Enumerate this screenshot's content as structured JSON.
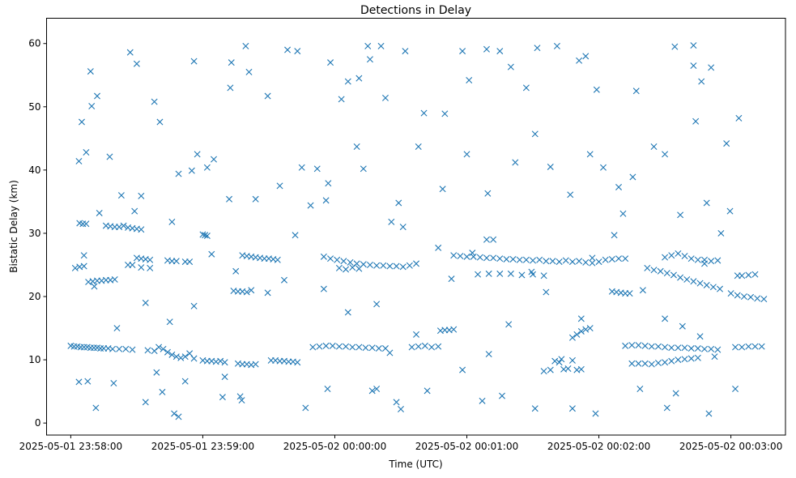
{
  "chart_data": {
    "type": "scatter",
    "title": "Detections in Delay",
    "xlabel": "Time (UTC)",
    "ylabel": "Bistatic Delay (km)",
    "x_units": "seconds since 2025-05-01 23:58:00 UTC",
    "xlim": [
      -11.0,
      324.8
    ],
    "ylim": [
      -1.9,
      64.0
    ],
    "grid": false,
    "marker": "x",
    "color": "#1f77b4",
    "x_ticks": [
      {
        "value": 0,
        "label": "2025-05-01 23:58:00"
      },
      {
        "value": 60,
        "label": "2025-05-01 23:59:00"
      },
      {
        "value": 120,
        "label": "2025-05-02 00:00:00"
      },
      {
        "value": 180,
        "label": "2025-05-02 00:01:00"
      },
      {
        "value": 240,
        "label": "2025-05-02 00:02:00"
      },
      {
        "value": 300,
        "label": "2025-05-02 00:03:00"
      }
    ],
    "y_ticks": [
      {
        "value": 0,
        "label": "0"
      },
      {
        "value": 10,
        "label": "10"
      },
      {
        "value": 20,
        "label": "20"
      },
      {
        "value": 30,
        "label": "30"
      },
      {
        "value": 40,
        "label": "40"
      },
      {
        "value": 50,
        "label": "50"
      },
      {
        "value": 60,
        "label": "60"
      }
    ],
    "points": [
      [
        0,
        12.2
      ],
      [
        1.5,
        12.1
      ],
      [
        3,
        12.1
      ],
      [
        4.5,
        12.0
      ],
      [
        6,
        12.0
      ],
      [
        7.5,
        12.0
      ],
      [
        9,
        11.9
      ],
      [
        10.5,
        11.9
      ],
      [
        12,
        11.9
      ],
      [
        13.5,
        11.8
      ],
      [
        15,
        11.8
      ],
      [
        17,
        11.8
      ],
      [
        19,
        11.7
      ],
      [
        22,
        11.7
      ],
      [
        25,
        11.7
      ],
      [
        28,
        11.6
      ],
      [
        4,
        31.6
      ],
      [
        5.5,
        31.5
      ],
      [
        7,
        31.5
      ],
      [
        16,
        31.2
      ],
      [
        18,
        31.1
      ],
      [
        20,
        31.0
      ],
      [
        22,
        31.0
      ],
      [
        24,
        31.2
      ],
      [
        26,
        30.9
      ],
      [
        28,
        30.8
      ],
      [
        30,
        30.7
      ],
      [
        32,
        30.6
      ],
      [
        8,
        22.3
      ],
      [
        10,
        22.4
      ],
      [
        12,
        22.5
      ],
      [
        14,
        22.5
      ],
      [
        16,
        22.6
      ],
      [
        18,
        22.6
      ],
      [
        20,
        22.7
      ],
      [
        2,
        24.5
      ],
      [
        4,
        24.7
      ],
      [
        6,
        24.8
      ],
      [
        28,
        25
      ],
      [
        32,
        24.6
      ],
      [
        36,
        24.5
      ],
      [
        30,
        26.1
      ],
      [
        32,
        26
      ],
      [
        34,
        25.9
      ],
      [
        36,
        25.8
      ],
      [
        44,
        25.7
      ],
      [
        46,
        25.6
      ],
      [
        48,
        25.6
      ],
      [
        52,
        25.5
      ],
      [
        54,
        25.5
      ],
      [
        35,
        11.5
      ],
      [
        38,
        11.4
      ],
      [
        40,
        12
      ],
      [
        42,
        11.7
      ],
      [
        44,
        11.2
      ],
      [
        46,
        10.8
      ],
      [
        48,
        10.5
      ],
      [
        50,
        10.3
      ],
      [
        52,
        10.5
      ],
      [
        54,
        11
      ],
      [
        56,
        10.2
      ],
      [
        60,
        9.9
      ],
      [
        62,
        9.8
      ],
      [
        64,
        9.8
      ],
      [
        66,
        9.7
      ],
      [
        68,
        9.8
      ],
      [
        70,
        9.6
      ],
      [
        60,
        29.8
      ],
      [
        61,
        29.7
      ],
      [
        62,
        29.6
      ],
      [
        74,
        20.9
      ],
      [
        76,
        20.8
      ],
      [
        78,
        20.8
      ],
      [
        80,
        20.7
      ],
      [
        82,
        21
      ],
      [
        78,
        26.5
      ],
      [
        80,
        26.4
      ],
      [
        82,
        26.3
      ],
      [
        84,
        26.2
      ],
      [
        86,
        26.1
      ],
      [
        88,
        26
      ],
      [
        90,
        26
      ],
      [
        92,
        25.9
      ],
      [
        94,
        25.8
      ],
      [
        76,
        9.4
      ],
      [
        78,
        9.3
      ],
      [
        80,
        9.3
      ],
      [
        82,
        9.2
      ],
      [
        84,
        9.3
      ],
      [
        91,
        9.9
      ],
      [
        93,
        9.9
      ],
      [
        95,
        9.8
      ],
      [
        97,
        9.8
      ],
      [
        99,
        9.7
      ],
      [
        101,
        9.7
      ],
      [
        103,
        9.6
      ],
      [
        110,
        12
      ],
      [
        113,
        12.1
      ],
      [
        116,
        12.2
      ],
      [
        119,
        12.2
      ],
      [
        122,
        12.1
      ],
      [
        125,
        12.1
      ],
      [
        128,
        12.0
      ],
      [
        131,
        12.0
      ],
      [
        134,
        11.9
      ],
      [
        137,
        11.9
      ],
      [
        140,
        11.8
      ],
      [
        143,
        11.8
      ],
      [
        115,
        26.3
      ],
      [
        118,
        26
      ],
      [
        121,
        25.8
      ],
      [
        124,
        25.6
      ],
      [
        127,
        25.4
      ],
      [
        130,
        25.2
      ],
      [
        133,
        25.1
      ],
      [
        136,
        25
      ],
      [
        139,
        24.9
      ],
      [
        142,
        24.9
      ],
      [
        145,
        24.8
      ],
      [
        148,
        24.8
      ],
      [
        151,
        24.7
      ],
      [
        154,
        24.9
      ],
      [
        157,
        25.2
      ],
      [
        122,
        24.5
      ],
      [
        125,
        24.3
      ],
      [
        128,
        24.6
      ],
      [
        131,
        24.4
      ],
      [
        155,
        12
      ],
      [
        158,
        12.1
      ],
      [
        161,
        12.2
      ],
      [
        164,
        12
      ],
      [
        167,
        12.1
      ],
      [
        168,
        14.6
      ],
      [
        170,
        14.7
      ],
      [
        172,
        14.7
      ],
      [
        174,
        14.8
      ],
      [
        174,
        26.5
      ],
      [
        177,
        26.4
      ],
      [
        180,
        26.3
      ],
      [
        183,
        26.3
      ],
      [
        186,
        26.2
      ],
      [
        189,
        26.1
      ],
      [
        192,
        26.1
      ],
      [
        195,
        26
      ],
      [
        198,
        25.9
      ],
      [
        201,
        25.9
      ],
      [
        204,
        25.8
      ],
      [
        207,
        25.8
      ],
      [
        210,
        25.7
      ],
      [
        213,
        25.8
      ],
      [
        216,
        25.6
      ],
      [
        219,
        25.6
      ],
      [
        222,
        25.5
      ],
      [
        185,
        23.5
      ],
      [
        190,
        23.6
      ],
      [
        195,
        23.6
      ],
      [
        200,
        23.6
      ],
      [
        205,
        23.4
      ],
      [
        210,
        23.5
      ],
      [
        215,
        23.3
      ],
      [
        189,
        29
      ],
      [
        192,
        29
      ],
      [
        215,
        8.2
      ],
      [
        218,
        8.4
      ],
      [
        220,
        9.8
      ],
      [
        222,
        9.6
      ],
      [
        224,
        8.5
      ],
      [
        226,
        8.6
      ],
      [
        228,
        9.9
      ],
      [
        230,
        8.4
      ],
      [
        232,
        8.5
      ],
      [
        228,
        13.5
      ],
      [
        230,
        14
      ],
      [
        232,
        14.5
      ],
      [
        234,
        14.8
      ],
      [
        236,
        15
      ],
      [
        225,
        25.7
      ],
      [
        228,
        25.5
      ],
      [
        231,
        25.6
      ],
      [
        234,
        25.4
      ],
      [
        237,
        25.3
      ],
      [
        240,
        25.5
      ],
      [
        243,
        25.8
      ],
      [
        246,
        25.9
      ],
      [
        249,
        26
      ],
      [
        252,
        26
      ],
      [
        246,
        20.8
      ],
      [
        248,
        20.7
      ],
      [
        250,
        20.6
      ],
      [
        252,
        20.5
      ],
      [
        254,
        20.5
      ],
      [
        252,
        12.2
      ],
      [
        255,
        12.3
      ],
      [
        258,
        12.3
      ],
      [
        261,
        12.2
      ],
      [
        264,
        12.1
      ],
      [
        267,
        12.1
      ],
      [
        270,
        12.0
      ],
      [
        273,
        11.9
      ],
      [
        276,
        11.9
      ],
      [
        279,
        11.9
      ],
      [
        282,
        11.8
      ],
      [
        285,
        11.8
      ],
      [
        288,
        11.7
      ],
      [
        291,
        11.7
      ],
      [
        294,
        11.6
      ],
      [
        255,
        9.4
      ],
      [
        258,
        9.4
      ],
      [
        261,
        9.4
      ],
      [
        264,
        9.3
      ],
      [
        267,
        9.5
      ],
      [
        270,
        9.6
      ],
      [
        273,
        9.8
      ],
      [
        276,
        10
      ],
      [
        279,
        10.1
      ],
      [
        282,
        10.2
      ],
      [
        285,
        10.3
      ],
      [
        262,
        24.5
      ],
      [
        265,
        24.2
      ],
      [
        268,
        24
      ],
      [
        271,
        23.7
      ],
      [
        274,
        23.4
      ],
      [
        277,
        23
      ],
      [
        280,
        22.7
      ],
      [
        283,
        22.4
      ],
      [
        286,
        22.1
      ],
      [
        289,
        21.8
      ],
      [
        292,
        21.5
      ],
      [
        295,
        21.2
      ],
      [
        270,
        26.2
      ],
      [
        273,
        26.5
      ],
      [
        276,
        26.8
      ],
      [
        279,
        26.4
      ],
      [
        282,
        26
      ],
      [
        285,
        25.8
      ],
      [
        288,
        25.8
      ],
      [
        291,
        25.6
      ],
      [
        294,
        25.7
      ],
      [
        302,
        12
      ],
      [
        305,
        12
      ],
      [
        308,
        12.1
      ],
      [
        311,
        12.1
      ],
      [
        314,
        12.1
      ],
      [
        300,
        20.5
      ],
      [
        303,
        20.2
      ],
      [
        306,
        20
      ],
      [
        309,
        19.9
      ],
      [
        312,
        19.7
      ],
      [
        315,
        19.6
      ],
      [
        305,
        23.3
      ],
      [
        308,
        23.4
      ],
      [
        311,
        23.5
      ],
      [
        3.7,
        41.4
      ],
      [
        5,
        47.6
      ],
      [
        7,
        42.8
      ],
      [
        9,
        55.6
      ],
      [
        12,
        51.7
      ],
      [
        9.5,
        50.1
      ],
      [
        17.7,
        42.1
      ],
      [
        27,
        58.6
      ],
      [
        30,
        56.8
      ],
      [
        32,
        35.9
      ],
      [
        40.5,
        47.6
      ],
      [
        38,
        50.8
      ],
      [
        49,
        39.4
      ],
      [
        56,
        57.2
      ],
      [
        57.5,
        42.5
      ],
      [
        65,
        41.7
      ],
      [
        73,
        57
      ],
      [
        72.5,
        53
      ],
      [
        79.5,
        59.6
      ],
      [
        81,
        55.5
      ],
      [
        89.5,
        51.7
      ],
      [
        98.5,
        59
      ],
      [
        103,
        58.8
      ],
      [
        112,
        40.2
      ],
      [
        116,
        35.2
      ],
      [
        118,
        57
      ],
      [
        123,
        51.2
      ],
      [
        126,
        54
      ],
      [
        131,
        54.5
      ],
      [
        135,
        59.6
      ],
      [
        141,
        59.6
      ],
      [
        136,
        57.5
      ],
      [
        143,
        51.4
      ],
      [
        152,
        58.8
      ],
      [
        160.5,
        49
      ],
      [
        170,
        48.9
      ],
      [
        178,
        58.8
      ],
      [
        181,
        54.2
      ],
      [
        189,
        59.1
      ],
      [
        195,
        58.8
      ],
      [
        200,
        56.3
      ],
      [
        207,
        53
      ],
      [
        212,
        59.3
      ],
      [
        221,
        59.6
      ],
      [
        231,
        57.3
      ],
      [
        234,
        58
      ],
      [
        239,
        52.7
      ],
      [
        257,
        52.5
      ],
      [
        274.5,
        59.5
      ],
      [
        283,
        59.7
      ],
      [
        283,
        56.5
      ],
      [
        286.6,
        54
      ],
      [
        291,
        56.2
      ],
      [
        284,
        47.7
      ],
      [
        298,
        44.2
      ],
      [
        303,
        23.3
      ],
      [
        303.6,
        48.2
      ],
      [
        3.7,
        6.5
      ],
      [
        11.4,
        2.4
      ],
      [
        7.7,
        6.6
      ],
      [
        19.5,
        6.3
      ],
      [
        34,
        3.3
      ],
      [
        41.6,
        4.9
      ],
      [
        47,
        1.5
      ],
      [
        49,
        1.0
      ],
      [
        52,
        6.6
      ],
      [
        69,
        4.1
      ],
      [
        77,
        4.2
      ],
      [
        77.7,
        3.6
      ],
      [
        106.7,
        2.4
      ],
      [
        116.7,
        5.4
      ],
      [
        137,
        5.1
      ],
      [
        139,
        5.4
      ],
      [
        148,
        3.3
      ],
      [
        150,
        2.2
      ],
      [
        162,
        5.1
      ],
      [
        178,
        8.4
      ],
      [
        187,
        3.5
      ],
      [
        196,
        4.3
      ],
      [
        211,
        2.3
      ],
      [
        228,
        2.3
      ],
      [
        238.5,
        1.5
      ],
      [
        258.7,
        5.4
      ],
      [
        271,
        2.4
      ],
      [
        275,
        4.7
      ],
      [
        290,
        1.5
      ],
      [
        302,
        5.4
      ],
      [
        6,
        26.5
      ],
      [
        10.7,
        21.6
      ],
      [
        13,
        33.2
      ],
      [
        21,
        15
      ],
      [
        26,
        25
      ],
      [
        34,
        19
      ],
      [
        39,
        8
      ],
      [
        45,
        16
      ],
      [
        56,
        18.5
      ],
      [
        64,
        26.7
      ],
      [
        70,
        7.3
      ],
      [
        75,
        24
      ],
      [
        89.5,
        20.6
      ],
      [
        97,
        22.6
      ],
      [
        102,
        29.7
      ],
      [
        109,
        34.4
      ],
      [
        115,
        21.2
      ],
      [
        126,
        17.5
      ],
      [
        139,
        18.8
      ],
      [
        145,
        11.1
      ],
      [
        145.7,
        31.8
      ],
      [
        151,
        31
      ],
      [
        157,
        14
      ],
      [
        167,
        27.7
      ],
      [
        173,
        22.8
      ],
      [
        182.5,
        26.9
      ],
      [
        190,
        10.9
      ],
      [
        199,
        15.6
      ],
      [
        209.4,
        23.9
      ],
      [
        216,
        20.7
      ],
      [
        223,
        10.1
      ],
      [
        232,
        16.5
      ],
      [
        237,
        26.1
      ],
      [
        247,
        29.7
      ],
      [
        251,
        33.1
      ],
      [
        260,
        21
      ],
      [
        270,
        16.5
      ],
      [
        278,
        15.3
      ],
      [
        286,
        13.7
      ],
      [
        292.6,
        10.5
      ],
      [
        288,
        25.2
      ],
      [
        295.5,
        30
      ],
      [
        23,
        36
      ],
      [
        29,
        33.5
      ],
      [
        46,
        31.8
      ],
      [
        55,
        39.9
      ],
      [
        62,
        40.4
      ],
      [
        72,
        35.4
      ],
      [
        84,
        35.4
      ],
      [
        95,
        37.5
      ],
      [
        105,
        40.4
      ],
      [
        117,
        37.9
      ],
      [
        130,
        43.7
      ],
      [
        133,
        40.2
      ],
      [
        149,
        34.8
      ],
      [
        158,
        43.7
      ],
      [
        169,
        37
      ],
      [
        180,
        42.5
      ],
      [
        189.5,
        36.3
      ],
      [
        202,
        41.2
      ],
      [
        211,
        45.7
      ],
      [
        218,
        40.5
      ],
      [
        227,
        36.1
      ],
      [
        236,
        42.5
      ],
      [
        242,
        40.4
      ],
      [
        249,
        37.3
      ],
      [
        255.4,
        38.9
      ],
      [
        265,
        43.7
      ],
      [
        270,
        42.5
      ],
      [
        277,
        32.9
      ],
      [
        289,
        34.8
      ],
      [
        299.6,
        33.5
      ]
    ]
  }
}
